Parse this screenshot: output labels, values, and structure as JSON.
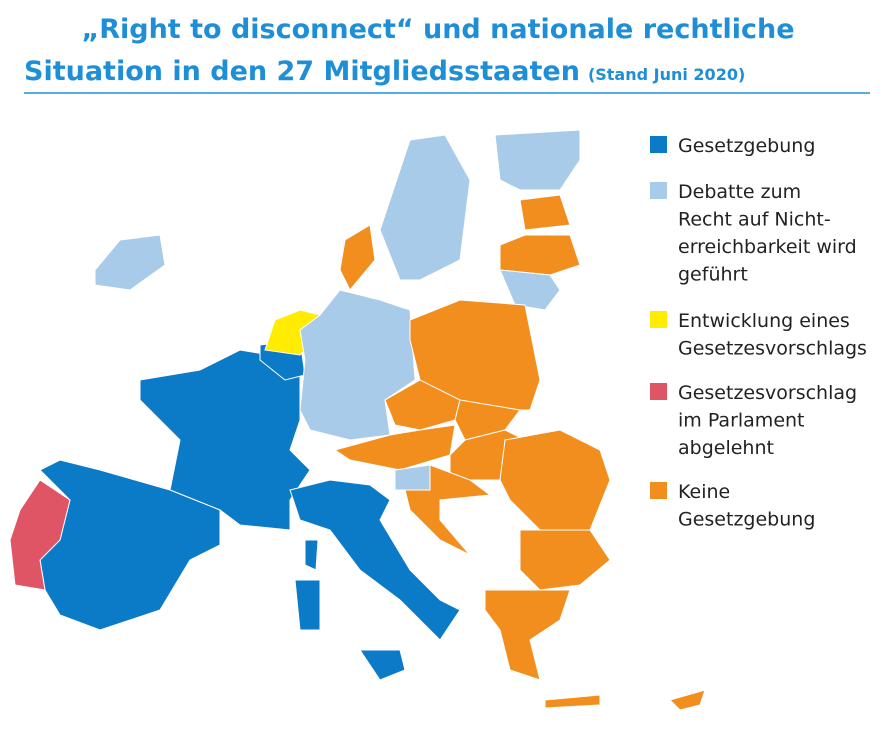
{
  "header": {
    "title_lines": [
      "„Right to disconnect“ und nationale rechtliche",
      "Situation in den 27 Mitgliedsstaaten"
    ],
    "subtitle": "(Stand Juni 2020)"
  },
  "legend": {
    "items": [
      {
        "color": "#0b7ac7",
        "lines": [
          "Gesetzgebung"
        ]
      },
      {
        "color": "#a9cbea",
        "lines": [
          "Debatte zum",
          "Recht auf Nicht-",
          "erreichbarkeit wird",
          "geführt"
        ]
      },
      {
        "color": "#ffec00",
        "lines": [
          "Entwicklung eines",
          "Gesetzesvorschlags"
        ]
      },
      {
        "color": "#e05565",
        "lines": [
          "Gesetzesvorschlag",
          "im Parlament",
          "abgelehnt"
        ]
      },
      {
        "color": "#f28e1e",
        "lines": [
          "Keine",
          "Gesetzgebung"
        ]
      }
    ]
  }
}
